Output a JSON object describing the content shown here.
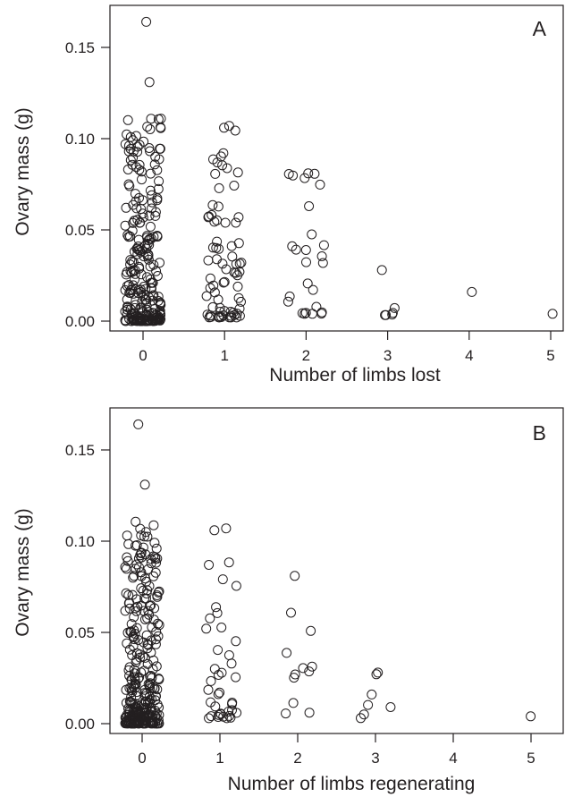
{
  "chart_data": [
    {
      "type": "scatter",
      "panel_label": "A",
      "xlabel": "Number of limbs lost",
      "ylabel": "Ovary mass (g)",
      "x_ticks": [
        0,
        1,
        2,
        3,
        4,
        5
      ],
      "y_ticks": [
        "0.00",
        "0.05",
        "0.10",
        "0.15"
      ],
      "xlim": [
        -0.45,
        5.3
      ],
      "ylim": [
        -0.006,
        0.169
      ],
      "marker": "open-circle",
      "groups": [
        {
          "x_category": 0,
          "points_shown": 255,
          "ovary_mass_range": [
            0.0,
            0.164
          ]
        },
        {
          "x_category": 1,
          "points_shown": 75,
          "ovary_mass_range": [
            0.002,
            0.107
          ]
        },
        {
          "x_category": 2,
          "points_shown": 26,
          "ovary_mass_range": [
            0.004,
            0.081
          ]
        },
        {
          "x_category": 3,
          "points_shown": 6,
          "ovary_mass_range": [
            0.003,
            0.028
          ]
        },
        {
          "x_category": 4,
          "points_shown": 1,
          "ovary_mass_range": [
            0.016,
            0.016
          ]
        },
        {
          "x_category": 5,
          "points_shown": 1,
          "ovary_mass_range": [
            0.004,
            0.004
          ]
        }
      ],
      "notable_points": [
        {
          "x": 0,
          "y": 0.164
        },
        {
          "x": 0,
          "y": 0.131
        },
        {
          "x": 1,
          "y": 0.107
        },
        {
          "x": 1,
          "y": 0.106
        },
        {
          "x": 2,
          "y": 0.081
        },
        {
          "x": 2,
          "y": 0.063
        },
        {
          "x": 3,
          "y": 0.028
        },
        {
          "x": 4,
          "y": 0.016
        },
        {
          "x": 5,
          "y": 0.004
        }
      ]
    },
    {
      "type": "scatter",
      "panel_label": "B",
      "xlabel": "Number of limbs regenerating",
      "ylabel": "Ovary mass (g)",
      "x_ticks": [
        0,
        1,
        2,
        3,
        4,
        5
      ],
      "y_ticks": [
        "0.00",
        "0.05",
        "0.10",
        "0.15"
      ],
      "xlim": [
        -0.45,
        5.3
      ],
      "ylim": [
        -0.006,
        0.169
      ],
      "marker": "open-circle",
      "groups": [
        {
          "x_category": 0,
          "points_shown": 300,
          "ovary_mass_range": [
            0.0,
            0.164
          ]
        },
        {
          "x_category": 1,
          "points_shown": 40,
          "ovary_mass_range": [
            0.003,
            0.107
          ]
        },
        {
          "x_category": 2,
          "points_shown": 12,
          "ovary_mass_range": [
            0.005,
            0.081
          ]
        },
        {
          "x_category": 3,
          "points_shown": 7,
          "ovary_mass_range": [
            0.003,
            0.028
          ]
        },
        {
          "x_category": 5,
          "points_shown": 1,
          "ovary_mass_range": [
            0.004,
            0.004
          ]
        }
      ],
      "notable_points": [
        {
          "x": 0,
          "y": 0.164
        },
        {
          "x": 0,
          "y": 0.131
        },
        {
          "x": 1,
          "y": 0.107
        },
        {
          "x": 1,
          "y": 0.106
        },
        {
          "x": 2,
          "y": 0.081
        },
        {
          "x": 3,
          "y": 0.028
        },
        {
          "x": 3,
          "y": 0.016
        },
        {
          "x": 5,
          "y": 0.004
        }
      ]
    }
  ]
}
